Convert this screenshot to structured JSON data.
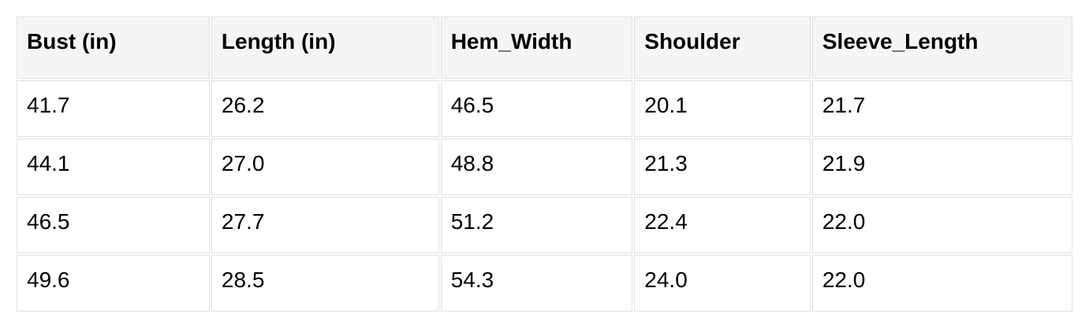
{
  "chart_data": {
    "type": "table",
    "columns": [
      "Bust (in)",
      "Length (in)",
      "Hem_Width",
      "Shoulder",
      "Sleeve_Length"
    ],
    "rows": [
      [
        "41.7",
        "26.2",
        "46.5",
        "20.1",
        "21.7"
      ],
      [
        "44.1",
        "27.0",
        "48.8",
        "21.3",
        "21.9"
      ],
      [
        "46.5",
        "27.7",
        "51.2",
        "22.4",
        "22.0"
      ],
      [
        "49.6",
        "28.5",
        "54.3",
        "24.0",
        "22.0"
      ]
    ]
  },
  "colors": {
    "header_bg": "#f5f5f5",
    "cell_border": "#e0e0e0",
    "text": "#000000",
    "page_bg": "#ffffff"
  }
}
